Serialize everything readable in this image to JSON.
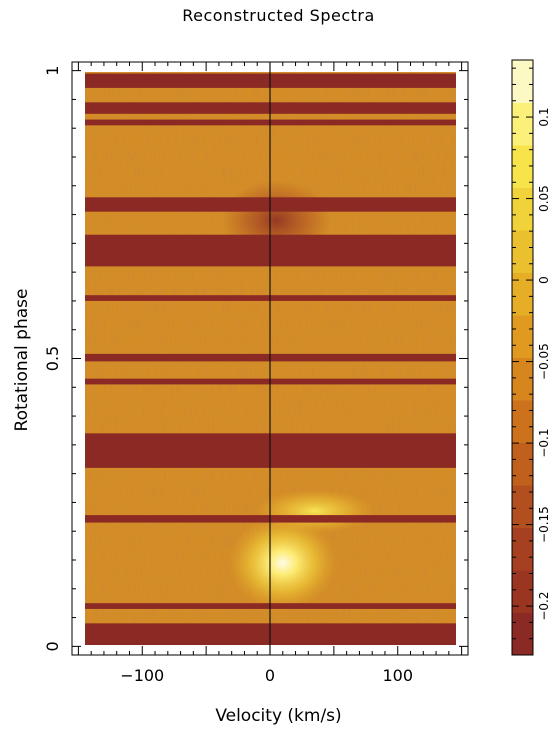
{
  "chart_data": {
    "type": "heatmap",
    "title": "Reconstructed Spectra",
    "xlabel": "Velocity (km/s)",
    "ylabel": "Rotational phase",
    "xlim": [
      -155,
      155
    ],
    "ylim": [
      -0.015,
      1.015
    ],
    "x_ticks": [
      -100,
      0,
      100
    ],
    "x_tick_labels": [
      "−100",
      "0",
      "100"
    ],
    "y_ticks": [
      0,
      0.5,
      1
    ],
    "y_tick_labels": [
      "0",
      "0.5",
      "1"
    ],
    "x_data_range": [
      -150,
      150
    ],
    "vertical_line_at": 0,
    "gap_bands_phase": [
      [
        0.0,
        0.04
      ],
      [
        0.065,
        0.075
      ],
      [
        0.215,
        0.228
      ],
      [
        0.31,
        0.37
      ],
      [
        0.455,
        0.465
      ],
      [
        0.495,
        0.508
      ],
      [
        0.6,
        0.61
      ],
      [
        0.66,
        0.715
      ],
      [
        0.755,
        0.78
      ],
      [
        0.905,
        0.915
      ],
      [
        0.925,
        0.945
      ],
      [
        0.97,
        0.995
      ]
    ],
    "features": [
      {
        "name": "bright-spot",
        "v": 10,
        "phase": 0.145,
        "value": 0.12
      },
      {
        "name": "bright-arc",
        "v": 35,
        "phase": 0.235,
        "value": 0.08
      },
      {
        "name": "dark-dip",
        "v": 5,
        "phase": 0.74,
        "value": -0.15
      }
    ],
    "colorbar": {
      "range": [
        -0.23,
        0.135
      ],
      "ticks": [
        0.1,
        0.05,
        0,
        -0.05,
        -0.1,
        -0.15,
        -0.2
      ],
      "tick_labels": [
        "0.1",
        "0.05",
        "0",
        "−0.05",
        "−0.1",
        "−0.15",
        "−0.2"
      ],
      "colors_low_to_high": [
        "#8b2a24",
        "#9a3522",
        "#a64020",
        "#b34f1e",
        "#c0601c",
        "#cc721c",
        "#d6861c",
        "#df9a1f",
        "#e6ad26",
        "#ebc02f",
        "#f0d23a",
        "#f6e44a",
        "#fbf17a",
        "#fdf9c4"
      ]
    }
  }
}
